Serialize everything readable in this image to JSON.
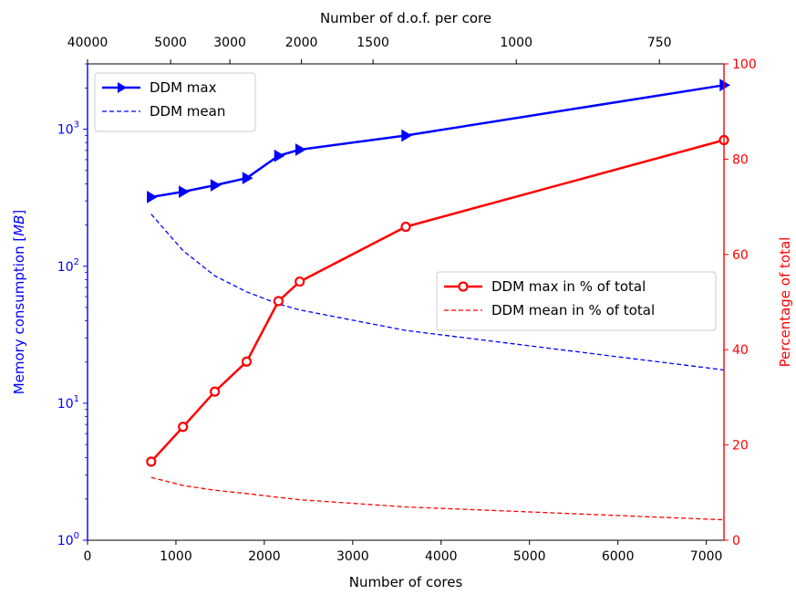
{
  "chart_data": {
    "type": "line",
    "xlabel": "Number of cores",
    "xlabel_top": "Number of d.o.f. per core",
    "ylabel_left": "Memory consumption [MB]",
    "ylabel_right": "Percentage of total",
    "xlim": [
      0,
      7200
    ],
    "ylim_left": [
      1,
      3000
    ],
    "ylim_right": [
      0,
      100
    ],
    "yscale_left": "log",
    "x_ticks": [
      0,
      1000,
      2000,
      3000,
      4000,
      5000,
      6000,
      7000
    ],
    "x_tick_labels": [
      "0",
      "1000",
      "2000",
      "3000",
      "4000",
      "5000",
      "6000",
      "7000"
    ],
    "top_ticks": [
      {
        "label": "40000",
        "x": 0
      },
      {
        "label": "5000",
        "x": 940
      },
      {
        "label": "3000",
        "x": 1610
      },
      {
        "label": "2000",
        "x": 2420
      },
      {
        "label": "1500",
        "x": 3230
      },
      {
        "label": "1000",
        "x": 4850
      },
      {
        "label": "750",
        "x": 6470
      }
    ],
    "y_left_ticks": [
      {
        "value": 1,
        "base": "10",
        "exp": "0"
      },
      {
        "value": 10,
        "base": "10",
        "exp": "1"
      },
      {
        "value": 100,
        "base": "10",
        "exp": "2"
      },
      {
        "value": 1000,
        "base": "10",
        "exp": "3"
      }
    ],
    "y_right_ticks": [
      "0",
      "20",
      "40",
      "60",
      "80",
      "100"
    ],
    "legend_left_position": "upper-left",
    "legend_right_position": "center-right",
    "series": [
      {
        "name": "DDM max",
        "axis": "left",
        "color": "#0000ff",
        "style": "solid",
        "marker": "triangle-right",
        "x": [
          720,
          1080,
          1440,
          1800,
          2160,
          2400,
          3600,
          7200
        ],
        "y": [
          320,
          350,
          390,
          440,
          640,
          710,
          900,
          2100
        ]
      },
      {
        "name": "DDM mean",
        "axis": "left",
        "color": "#0000ff",
        "style": "dashed",
        "x": [
          720,
          1080,
          1440,
          1800,
          2160,
          2400,
          3600,
          7200
        ],
        "y": [
          240,
          130,
          85,
          65,
          53,
          48,
          34,
          17.5
        ]
      },
      {
        "name": "DDM max in % of total",
        "axis": "right",
        "color": "#ff0000",
        "style": "solid",
        "marker": "circle-open",
        "x": [
          720,
          1080,
          1440,
          1800,
          2160,
          2400,
          3600,
          7200
        ],
        "y": [
          16.5,
          23.8,
          31.2,
          37.5,
          50.2,
          54.3,
          65.8,
          84.0
        ]
      },
      {
        "name": "DDM mean in % of total",
        "axis": "right",
        "color": "#ff0000",
        "style": "dashed",
        "x": [
          720,
          1080,
          1440,
          1800,
          2160,
          2400,
          3600,
          7200
        ],
        "y": [
          13.2,
          11.5,
          10.5,
          9.8,
          9.0,
          8.5,
          7.0,
          4.3
        ]
      }
    ]
  }
}
